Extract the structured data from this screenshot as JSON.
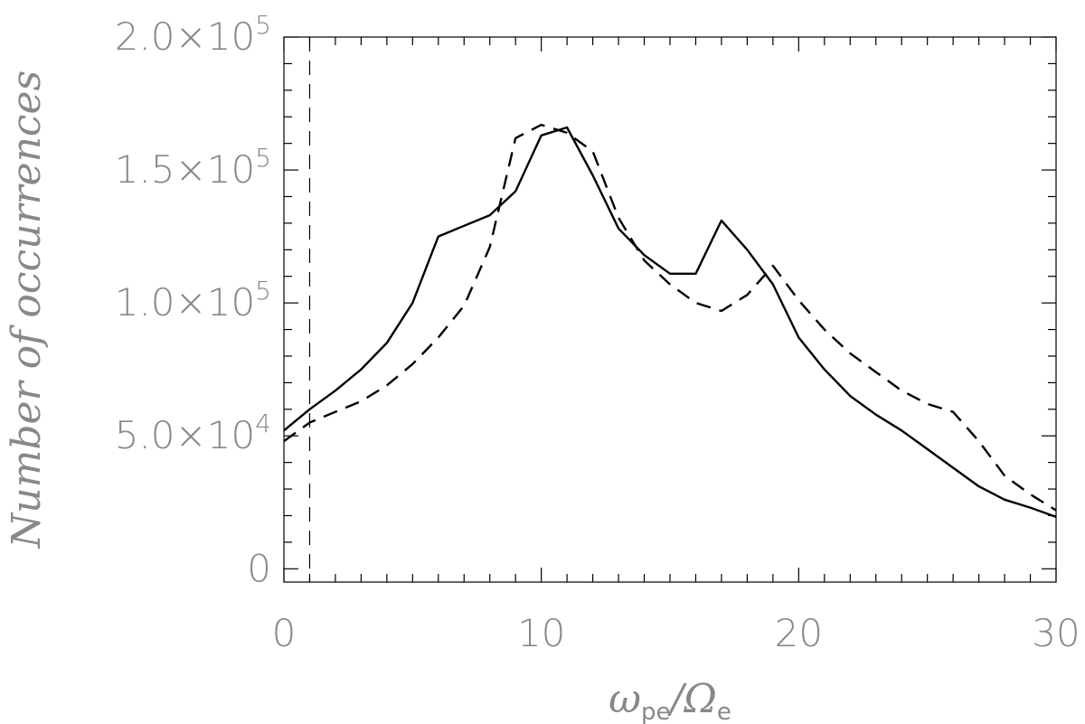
{
  "chart_data": {
    "type": "line",
    "xlabel": "ωpe/Ωe",
    "xlabel_main": "ω",
    "xlabel_sub1": "pe",
    "xlabel_sep": "/Ω",
    "xlabel_sub2": "e",
    "ylabel": "Number of occurrences",
    "xlim": [
      0,
      30
    ],
    "ylim": [
      -5000,
      200000
    ],
    "x_ticks": [
      0,
      10,
      20,
      30
    ],
    "x_tick_labels": [
      "0",
      "10",
      "20",
      "30"
    ],
    "y_ticks": [
      0,
      50000,
      100000,
      150000,
      200000
    ],
    "y_tick_labels": [
      {
        "base": "0",
        "exp": ""
      },
      {
        "base": "5.0×10",
        "exp": "4"
      },
      {
        "base": "1.0×10",
        "exp": "5"
      },
      {
        "base": "1.5×10",
        "exp": "5"
      },
      {
        "base": "2.0×10",
        "exp": "5"
      }
    ],
    "vertical_line_x": 1,
    "grid": false,
    "series": [
      {
        "style": "solid",
        "color": "#000000",
        "x": [
          0,
          1,
          2,
          3,
          4,
          5,
          6,
          7,
          8,
          9,
          10,
          11,
          12,
          13,
          14,
          15,
          16,
          17,
          18,
          19,
          20,
          21,
          22,
          23,
          24,
          25,
          26,
          27,
          28,
          29,
          30
        ],
        "y": [
          52000,
          60000,
          67000,
          75000,
          85000,
          100000,
          125000,
          129000,
          133000,
          142000,
          163000,
          166000,
          148000,
          128000,
          118000,
          111000,
          111000,
          131000,
          120000,
          107000,
          87000,
          75000,
          65000,
          58000,
          52000,
          45000,
          38000,
          31000,
          26000,
          23000,
          19500
        ]
      },
      {
        "style": "dashed",
        "color": "#000000",
        "x": [
          0,
          1,
          2,
          3,
          4,
          5,
          6,
          7,
          8,
          9,
          10,
          11,
          12,
          13,
          14,
          15,
          16,
          17,
          18,
          19,
          20,
          21,
          22,
          23,
          24,
          25,
          26,
          27,
          28,
          29,
          30
        ],
        "y": [
          48000,
          55000,
          59000,
          63000,
          69000,
          77000,
          87000,
          99000,
          121000,
          162000,
          167000,
          164000,
          157000,
          132000,
          116000,
          107000,
          100000,
          97000,
          103000,
          114000,
          101000,
          90000,
          81000,
          74000,
          67000,
          62000,
          59000,
          48000,
          35000,
          28000,
          22000
        ]
      }
    ]
  }
}
